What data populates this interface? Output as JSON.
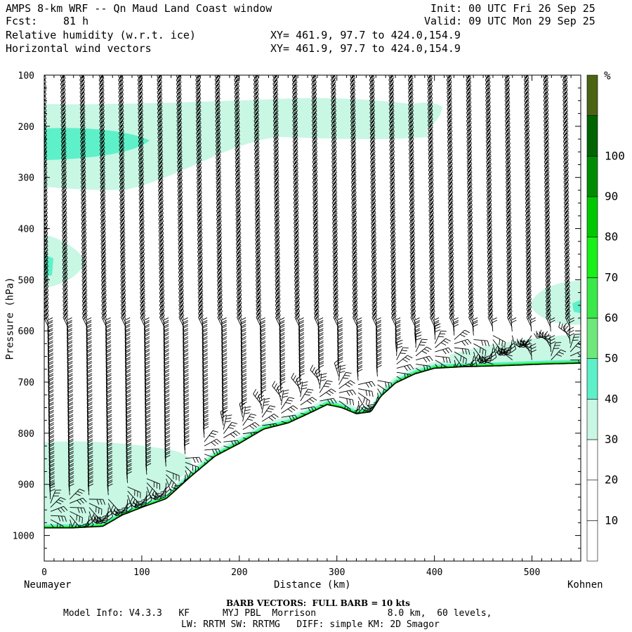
{
  "header": {
    "title": "AMPS 8-km WRF -- Qn Maud Land Coast window",
    "fcst_label": "Fcst:",
    "fcst_value": "81 h",
    "init": "Init: 00 UTC Fri 26 Sep 25",
    "valid": "Valid: 09 UTC Mon 29 Sep 25",
    "field1": "Relative humidity (w.r.t. ice)",
    "field1_xy": "XY= 461.9, 97.7 to 424.0,154.9",
    "field2": "Horizontal wind vectors",
    "field2_xy": "XY= 461.9, 97.7 to 424.0,154.9"
  },
  "chart_data": {
    "type": "cross-section",
    "xlabel": "Distance (km)",
    "ylabel": "Pressure (hPa)",
    "xlim": [
      0,
      550
    ],
    "ylim": [
      1050,
      100
    ],
    "x_ticks": [
      "0",
      "100",
      "200",
      "300",
      "400",
      "500"
    ],
    "x_tick_values": [
      0,
      100,
      200,
      300,
      400,
      500
    ],
    "y_ticks": [
      "100",
      "200",
      "300",
      "400",
      "500",
      "600",
      "700",
      "800",
      "900",
      "1000"
    ],
    "y_tick_values": [
      100,
      200,
      300,
      400,
      500,
      600,
      700,
      800,
      900,
      1000
    ],
    "left_endpoint": "Neumayer",
    "right_endpoint": "Kohnen",
    "colorbar": {
      "unit": "%",
      "labels": [
        "10",
        "20",
        "30",
        "40",
        "50",
        "60",
        "70",
        "80",
        "90",
        "100"
      ],
      "colors": [
        "#ffffff",
        "#ffffff",
        "#ffffff",
        "#c8f7e4",
        "#5ef0c8",
        "#6ee87a",
        "#3ae84a",
        "#18f018",
        "#00c800",
        "#008c00",
        "#006400",
        "#4a6414"
      ]
    },
    "terrain_km": [
      0,
      30,
      60,
      80,
      100,
      125,
      150,
      175,
      200,
      225,
      250,
      275,
      290,
      305,
      320,
      335,
      345,
      360,
      380,
      400,
      430,
      470,
      510,
      550
    ],
    "terrain_hPa": [
      985,
      985,
      982,
      960,
      945,
      928,
      885,
      845,
      820,
      792,
      780,
      758,
      744,
      750,
      762,
      758,
      728,
      702,
      684,
      673,
      670,
      668,
      665,
      663
    ]
  },
  "footer": {
    "barb_note": "BARB VECTORS:  FULL BARB = 10 kts",
    "model_info": "Model Info: V4.3.3   KF      MYJ PBL  Morrison             8.0 km,  60 levels,",
    "physics": "LW: RRTM SW: RRTMG   DIFF: simple KM: 2D Smagor"
  }
}
